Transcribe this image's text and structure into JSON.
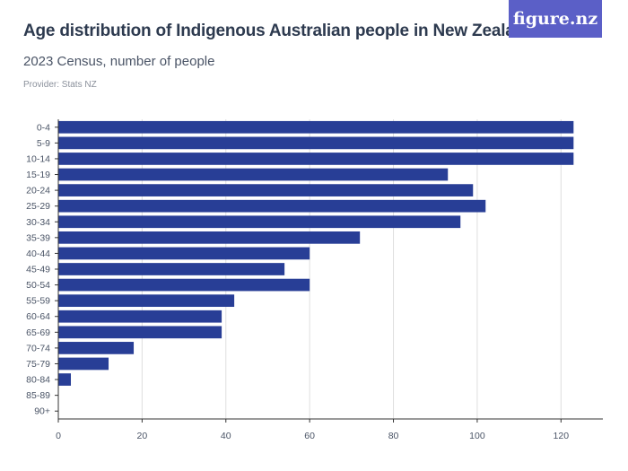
{
  "header": {
    "title": "Age distribution of Indigenous Australian people in New Zealand",
    "subtitle": "2023 Census, number of people",
    "provider": "Provider: Stats NZ",
    "logo_text": "figure.nz"
  },
  "colors": {
    "bar": "#283e96",
    "logo_bg": "#5b5fc7",
    "grid": "#dedede",
    "axis": "#333333"
  },
  "chart_data": {
    "type": "bar",
    "orientation": "horizontal",
    "title": "Age distribution of Indigenous Australian people in New Zealand",
    "subtitle": "2023 Census, number of people",
    "xlabel": "",
    "ylabel": "",
    "categories": [
      "0-4",
      "5-9",
      "10-14",
      "15-19",
      "20-24",
      "25-29",
      "30-34",
      "35-39",
      "40-44",
      "45-49",
      "50-54",
      "55-59",
      "60-64",
      "65-69",
      "70-74",
      "75-79",
      "80-84",
      "85-89",
      "90+"
    ],
    "values": [
      123,
      123,
      123,
      93,
      99,
      102,
      96,
      72,
      60,
      54,
      60,
      42,
      39,
      39,
      18,
      12,
      3,
      0,
      0
    ],
    "xlim": [
      0,
      130
    ],
    "x_ticks": [
      0,
      20,
      40,
      60,
      80,
      100,
      120
    ],
    "grid": "vertical"
  }
}
